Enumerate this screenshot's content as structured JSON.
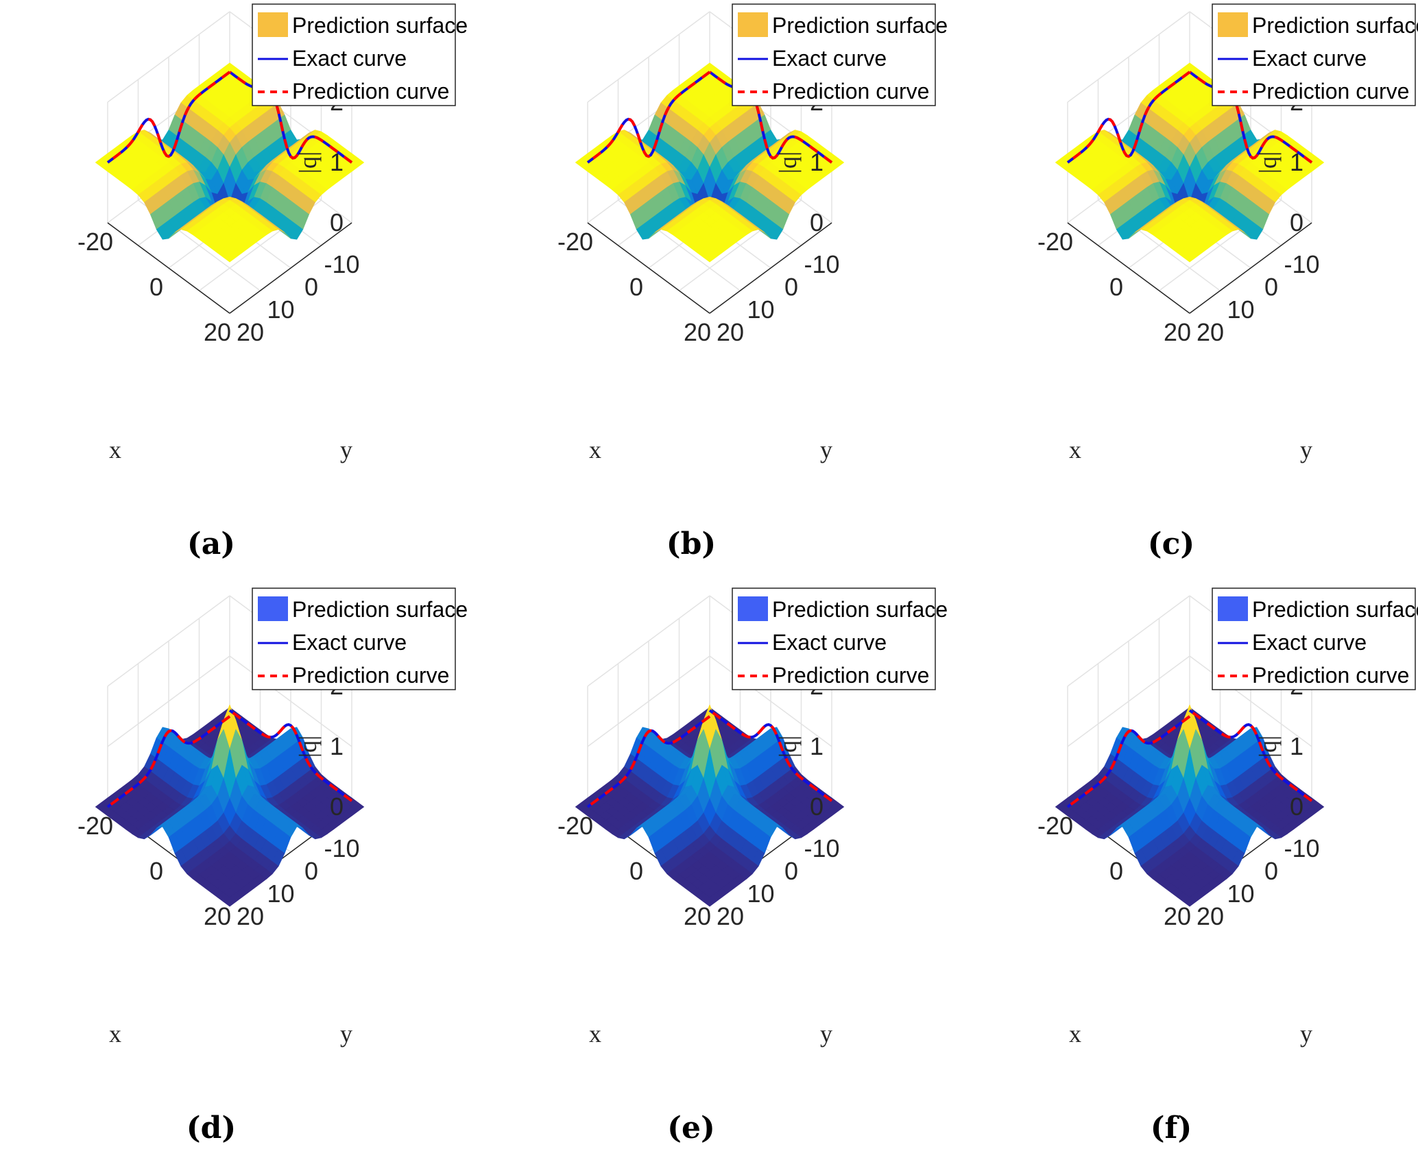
{
  "chart_data": [
    {
      "type": "surface",
      "caption": "(a)",
      "zlabel": "|q|",
      "xlabel": "x",
      "ylabel": "y",
      "zticks": [
        "0",
        "1",
        "2"
      ],
      "xticks": [
        "20",
        "0",
        "-20"
      ],
      "yticks": [
        "-10",
        "0",
        "10",
        "20"
      ],
      "xlim": [
        -20,
        20
      ],
      "ylim": [
        -20,
        20
      ],
      "zlim": [
        0,
        2
      ],
      "colormap": "parula",
      "peak_type": "dark",
      "surface_base_level": 1.0,
      "center": [
        0,
        0
      ],
      "legend": {
        "entries": [
          "Prediction surface",
          "Exact curve",
          "Prediction curve"
        ],
        "surface_color": "#f7bf40",
        "exact_color": "#1010e0",
        "pred_color": "#ff0000"
      }
    },
    {
      "type": "surface",
      "caption": "(b)",
      "zlabel": "|q|",
      "xlabel": "x",
      "ylabel": "y",
      "zticks": [
        "0",
        "1",
        "2"
      ],
      "xticks": [
        "20",
        "0",
        "-20"
      ],
      "yticks": [
        "-10",
        "0",
        "10",
        "20"
      ],
      "xlim": [
        -20,
        20
      ],
      "ylim": [
        -20,
        20
      ],
      "zlim": [
        0,
        2
      ],
      "colormap": "parula",
      "peak_type": "dark",
      "surface_base_level": 1.0,
      "center": [
        0,
        0
      ],
      "legend": {
        "entries": [
          "Prediction surface",
          "Exact curve",
          "Prediction curve"
        ],
        "surface_color": "#f7bf40",
        "exact_color": "#1010e0",
        "pred_color": "#ff0000"
      }
    },
    {
      "type": "surface",
      "caption": "(c)",
      "zlabel": "|q|",
      "xlabel": "x",
      "ylabel": "y",
      "zticks": [
        "0",
        "1",
        "2"
      ],
      "xticks": [
        "20",
        "0",
        "-20"
      ],
      "yticks": [
        "-10",
        "0",
        "10",
        "20"
      ],
      "xlim": [
        -20,
        20
      ],
      "ylim": [
        -20,
        20
      ],
      "zlim": [
        0,
        2
      ],
      "colormap": "parula",
      "peak_type": "dark",
      "surface_base_level": 1.0,
      "center": [
        0,
        0
      ],
      "legend": {
        "entries": [
          "Prediction surface",
          "Exact curve",
          "Prediction curve"
        ],
        "surface_color": "#f7bf40",
        "exact_color": "#1010e0",
        "pred_color": "#ff0000"
      }
    },
    {
      "type": "surface",
      "caption": "(d)",
      "zlabel": "|q|",
      "xlabel": "x",
      "ylabel": "y",
      "zticks": [
        "0",
        "1",
        "2"
      ],
      "xticks": [
        "20",
        "0",
        "-20"
      ],
      "yticks": [
        "-10",
        "0",
        "10",
        "20"
      ],
      "xlim": [
        -20,
        20
      ],
      "ylim": [
        -20,
        20
      ],
      "zlim": [
        0,
        2
      ],
      "colormap": "parula",
      "peak_type": "bright",
      "surface_base_level": 0.0,
      "center": [
        0,
        0
      ],
      "legend": {
        "entries": [
          "Prediction surface",
          "Exact curve",
          "Prediction curve"
        ],
        "surface_color": "#4060f5",
        "exact_color": "#1010e0",
        "pred_color": "#ff0000"
      }
    },
    {
      "type": "surface",
      "caption": "(e)",
      "zlabel": "|q|",
      "xlabel": "x",
      "ylabel": "y",
      "zticks": [
        "0",
        "1",
        "2"
      ],
      "xticks": [
        "20",
        "0",
        "-20"
      ],
      "yticks": [
        "-10",
        "0",
        "10",
        "20"
      ],
      "xlim": [
        -20,
        20
      ],
      "ylim": [
        -20,
        20
      ],
      "zlim": [
        0,
        2
      ],
      "colormap": "parula",
      "peak_type": "bright",
      "surface_base_level": 0.0,
      "center": [
        0,
        0
      ],
      "legend": {
        "entries": [
          "Prediction surface",
          "Exact curve",
          "Prediction curve"
        ],
        "surface_color": "#4060f5",
        "exact_color": "#1010e0",
        "pred_color": "#ff0000"
      }
    },
    {
      "type": "surface",
      "caption": "(f)",
      "zlabel": "|q|",
      "xlabel": "x",
      "ylabel": "y",
      "zticks": [
        "0",
        "1",
        "2"
      ],
      "xticks": [
        "20",
        "0",
        "-20"
      ],
      "yticks": [
        "-10",
        "0",
        "10",
        "20"
      ],
      "xlim": [
        -20,
        20
      ],
      "ylim": [
        -20,
        20
      ],
      "zlim": [
        0,
        2
      ],
      "colormap": "parula",
      "peak_type": "bright",
      "surface_base_level": 0.0,
      "center": [
        0,
        0
      ],
      "legend": {
        "entries": [
          "Prediction surface",
          "Exact curve",
          "Prediction curve"
        ],
        "surface_color": "#4060f5",
        "exact_color": "#1010e0",
        "pred_color": "#ff0000"
      }
    }
  ]
}
